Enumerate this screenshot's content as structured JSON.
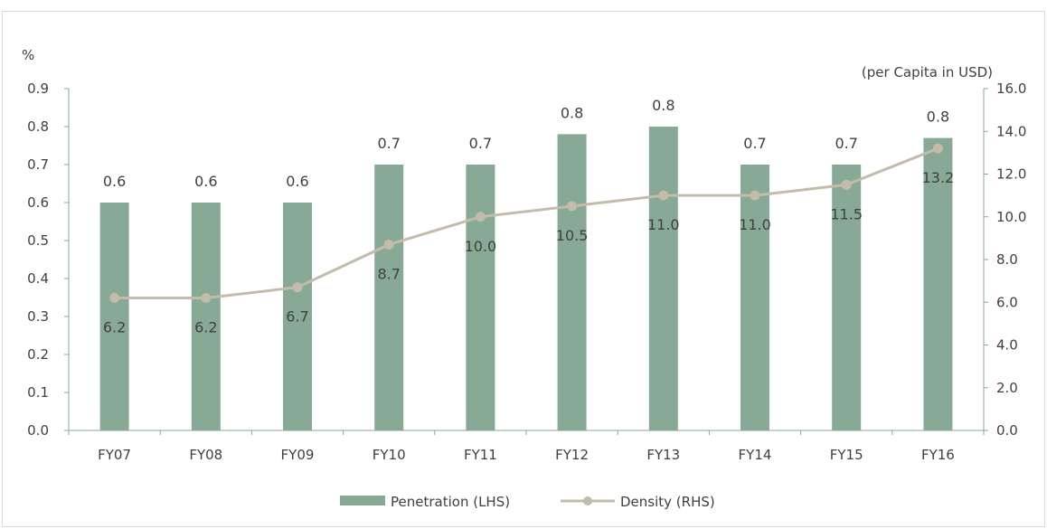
{
  "chart_data": {
    "type": "bar",
    "categories": [
      "FY07",
      "FY08",
      "FY09",
      "FY10",
      "FY11",
      "FY12",
      "FY13",
      "FY14",
      "FY15",
      "FY16"
    ],
    "series": [
      {
        "name": "Penetration (LHS)",
        "type": "bar",
        "axis": "left",
        "color": "#87a996",
        "values": [
          0.6,
          0.6,
          0.6,
          0.7,
          0.7,
          0.78,
          0.8,
          0.7,
          0.7,
          0.77
        ],
        "labels": [
          "0.6",
          "0.6",
          "0.6",
          "0.7",
          "0.7",
          "0.8",
          "0.8",
          "0.7",
          "0.7",
          "0.8"
        ]
      },
      {
        "name": "Density (RHS)",
        "type": "line",
        "axis": "right",
        "color": "#c4bcaa",
        "values": [
          6.2,
          6.2,
          6.7,
          8.7,
          10.0,
          10.5,
          11.0,
          11.0,
          11.5,
          13.2
        ],
        "labels": [
          "6.2",
          "6.2",
          "6.7",
          "8.7",
          "10.0",
          "10.5",
          "11.0",
          "11.0",
          "11.5",
          "13.2"
        ]
      }
    ],
    "y_left": {
      "unit": "%",
      "lim": [
        0,
        0.9
      ],
      "ticks": [
        "0.0",
        "0.1",
        "0.2",
        "0.3",
        "0.4",
        "0.5",
        "0.6",
        "0.7",
        "0.8",
        "0.9"
      ]
    },
    "y_right": {
      "unit": "(per Capita in USD)",
      "lim": [
        0,
        16
      ],
      "ticks": [
        "0.0",
        "2.0",
        "4.0",
        "6.0",
        "8.0",
        "10.0",
        "12.0",
        "14.0",
        "16.0"
      ]
    },
    "grid": false,
    "legend": "bottom-center",
    "axis_color": "#87a996"
  }
}
